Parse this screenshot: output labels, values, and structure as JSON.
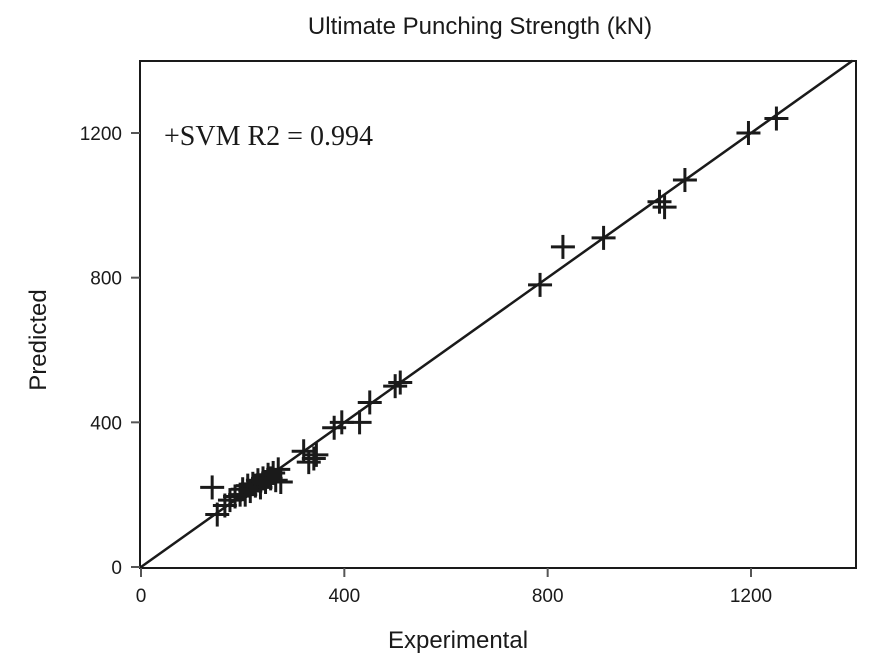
{
  "chart_data": {
    "type": "scatter",
    "title": "Ultimate Punching Strength (kN)",
    "xlabel": "Experimental",
    "ylabel": "Predicted",
    "xlim": [
      0,
      1400
    ],
    "ylim": [
      0,
      1400
    ],
    "xticks": [
      0,
      400,
      800,
      1200
    ],
    "yticks": [
      0,
      400,
      800,
      1200
    ],
    "grid": false,
    "marker": "+",
    "reference_line": {
      "type": "y=x",
      "from": [
        0,
        0
      ],
      "to": [
        1400,
        1400
      ]
    },
    "annotation": "+SVM R2 = 0.994",
    "series": [
      {
        "name": "SVM",
        "x": [
          140,
          150,
          165,
          175,
          185,
          195,
          200,
          205,
          210,
          215,
          220,
          225,
          230,
          235,
          240,
          245,
          250,
          255,
          260,
          265,
          270,
          275,
          320,
          330,
          340,
          345,
          380,
          395,
          430,
          450,
          500,
          510,
          785,
          830,
          910,
          1020,
          1030,
          1070,
          1195,
          1250
        ],
        "y": [
          220,
          145,
          170,
          185,
          195,
          200,
          215,
          200,
          225,
          210,
          230,
          225,
          240,
          220,
          245,
          235,
          255,
          245,
          260,
          240,
          270,
          235,
          320,
          290,
          300,
          310,
          385,
          400,
          400,
          455,
          500,
          510,
          780,
          885,
          910,
          1010,
          995,
          1070,
          1200,
          1240
        ]
      }
    ]
  },
  "labels": {
    "title": "Ultimate Punching Strength (kN)",
    "xlabel": "Experimental",
    "ylabel": "Predicted",
    "annotation": "+SVM R2 = 0.994",
    "xticks": [
      "0",
      "400",
      "800",
      "1200"
    ],
    "yticks": [
      "0",
      "400",
      "800",
      "1200"
    ]
  }
}
